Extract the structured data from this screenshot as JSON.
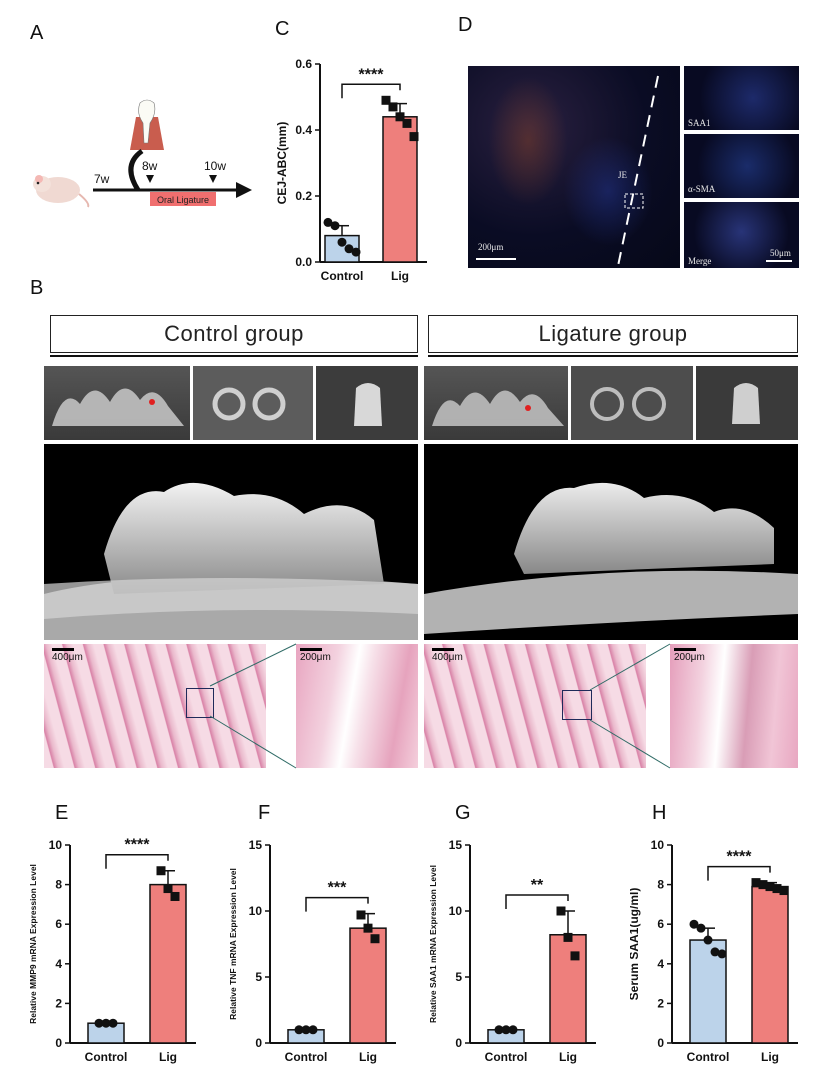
{
  "panels": {
    "A": "A",
    "B": "B",
    "C": "C",
    "D": "D",
    "E": "E",
    "F": "F",
    "G": "G",
    "H": "H"
  },
  "timeline": {
    "t1": "7w",
    "t2": "8w",
    "t3": "10w",
    "treatment": "Oral Ligature"
  },
  "groups": {
    "control": "Control group",
    "ligature": "Ligature   group"
  },
  "scalebars": {
    "low": "400μm",
    "high": "200μm"
  },
  "fluorescence": {
    "scale_main": "200μm",
    "scale_inset": "50μm",
    "je": "JE",
    "insets": [
      "SAA1",
      "α-SMA",
      "Merge"
    ]
  },
  "colors": {
    "control_bar": "#bcd3ea",
    "lig_bar": "#ee7f7c",
    "axis": "#111111"
  },
  "chart_data": [
    {
      "panel": "C",
      "type": "bar",
      "categories": [
        "Control",
        "Lig"
      ],
      "values": [
        0.08,
        0.44
      ],
      "errors": [
        0.03,
        0.04
      ],
      "points": [
        [
          0.12,
          0.11,
          0.06,
          0.04,
          0.03
        ],
        [
          0.49,
          0.47,
          0.44,
          0.42,
          0.38
        ]
      ],
      "ylabel": "CEJ-ABC(mm)",
      "ylim": [
        0,
        0.6
      ],
      "yticks": [
        0.0,
        0.2,
        0.4,
        0.6
      ],
      "tick_labels": [
        "0.0",
        "0.2",
        "0.4",
        "0.6"
      ],
      "significance": "****"
    },
    {
      "panel": "E",
      "type": "bar",
      "categories": [
        "Control",
        "Lig"
      ],
      "values": [
        1.0,
        8.0
      ],
      "errors": [
        0.05,
        0.7
      ],
      "points": [
        [
          1.0,
          1.0,
          1.0
        ],
        [
          8.7,
          7.8,
          7.4
        ]
      ],
      "ylabel": "Relative MMP9 mRNA Expression Level",
      "ylim": [
        0,
        10
      ],
      "yticks": [
        0,
        2,
        4,
        6,
        8,
        10
      ],
      "tick_labels": [
        "0",
        "2",
        "4",
        "6",
        "8",
        "10"
      ],
      "significance": "****"
    },
    {
      "panel": "F",
      "type": "bar",
      "categories": [
        "Control",
        "Lig"
      ],
      "values": [
        1.0,
        8.7
      ],
      "errors": [
        0.1,
        1.1
      ],
      "points": [
        [
          1.0,
          1.0,
          1.0
        ],
        [
          9.7,
          8.7,
          7.9
        ]
      ],
      "ylabel": "Relative TNF mRNA Expression Level",
      "ylim": [
        0,
        15
      ],
      "yticks": [
        0,
        5,
        10,
        15
      ],
      "tick_labels": [
        "0",
        "5",
        "10",
        "15"
      ],
      "significance": "***"
    },
    {
      "panel": "G",
      "type": "bar",
      "categories": [
        "Control",
        "Lig"
      ],
      "values": [
        1.0,
        8.2
      ],
      "errors": [
        0.1,
        1.8
      ],
      "points": [
        [
          1.0,
          1.0,
          1.0
        ],
        [
          10.0,
          8.0,
          6.6
        ]
      ],
      "ylabel": "Relative SAA1  mRNA Expression Level",
      "ylim": [
        0,
        15
      ],
      "yticks": [
        0,
        5,
        10,
        15
      ],
      "tick_labels": [
        "0",
        "5",
        "10",
        "15"
      ],
      "significance": "**"
    },
    {
      "panel": "H",
      "type": "bar",
      "categories": [
        "Control",
        "Lig"
      ],
      "values": [
        5.2,
        7.9
      ],
      "errors": [
        0.6,
        0.2
      ],
      "points": [
        [
          6.0,
          5.8,
          5.2,
          4.6,
          4.5
        ],
        [
          8.1,
          8.0,
          7.9,
          7.8,
          7.7
        ]
      ],
      "ylabel": "Serum SAA1(ug/ml)",
      "ylim": [
        0,
        10
      ],
      "yticks": [
        0,
        2,
        4,
        6,
        8,
        10
      ],
      "tick_labels": [
        "0",
        "2",
        "4",
        "6",
        "8",
        "10"
      ],
      "significance": "****"
    }
  ]
}
